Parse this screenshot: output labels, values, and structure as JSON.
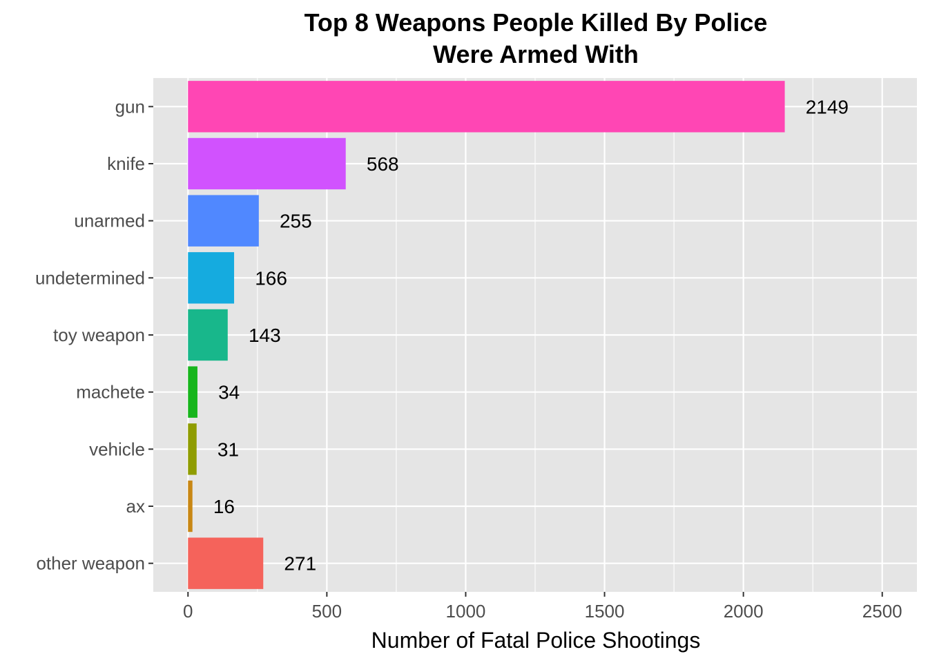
{
  "chart_data": {
    "type": "bar",
    "orientation": "horizontal",
    "title_lines": [
      "Top 8 Weapons People Killed By Police",
      "Were Armed With"
    ],
    "xlabel": "Number of Fatal Police Shootings",
    "ylabel": "",
    "categories": [
      "gun",
      "knife",
      "unarmed",
      "undetermined",
      "toy weapon",
      "machete",
      "vehicle",
      "ax",
      "other weapon"
    ],
    "values": [
      2149,
      568,
      255,
      166,
      143,
      34,
      31,
      16,
      271
    ],
    "value_labels": [
      "2149",
      "568",
      "255",
      "166",
      "143",
      "34",
      "31",
      "16",
      "271"
    ],
    "colors": [
      "#FF46B4",
      "#D152FE",
      "#5088FF",
      "#15ABDF",
      "#18B78B",
      "#17B51C",
      "#8F9C00",
      "#C88714",
      "#F5635B"
    ],
    "xlim": [
      -125,
      2625
    ],
    "xticks": [
      0,
      500,
      1000,
      1500,
      2000,
      2500
    ],
    "xtick_labels": [
      "0",
      "500",
      "1000",
      "1500",
      "2000",
      "2500"
    ],
    "grid": true,
    "legend": "none",
    "panel_background": "#E5E5E5",
    "grid_color": "#FFFFFF"
  }
}
